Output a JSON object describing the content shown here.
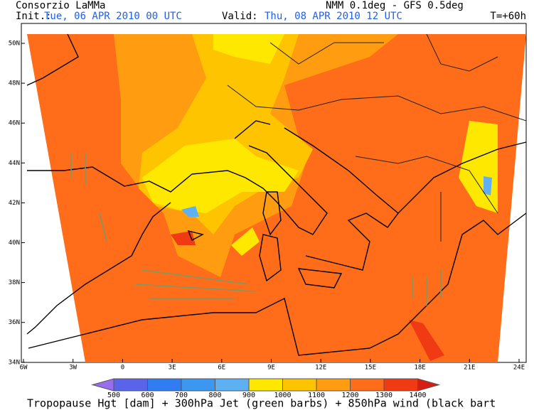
{
  "header": {
    "source": "Consorzio LaMMa",
    "model": "NMM 0.1deg - GFS 0.5deg",
    "init_label": "Init.:",
    "init_time": "Tue, 06 APR 2010  00 UTC",
    "valid_label": "Valid:",
    "valid_time": "Thu, 08 APR 2010  12 UTC",
    "lead_time": "T=+60h"
  },
  "map": {
    "lon_labels": [
      "6W",
      "3W",
      "0",
      "3E",
      "6E",
      "9E",
      "12E",
      "15E",
      "18E",
      "21E",
      "24E"
    ],
    "lat_labels": [
      "50N",
      "48N",
      "46N",
      "44N",
      "42N",
      "40N",
      "38N",
      "36N",
      "34N"
    ]
  },
  "colorbar": {
    "levels": [
      500,
      600,
      700,
      800,
      900,
      1000,
      1100,
      1200,
      1300,
      1400
    ],
    "colors": [
      "#9a6cf0",
      "#5a64ea",
      "#2f7df0",
      "#3b97f0",
      "#5fb0f2",
      "#ffe800",
      "#ffc400",
      "#ff9c10",
      "#ff6c1a",
      "#f03a14",
      "#d81e12"
    ]
  },
  "caption": "Tropopause Hgt [dam] + 300hPa Jet (green barbs) + 850hPa wind (black bart"
}
